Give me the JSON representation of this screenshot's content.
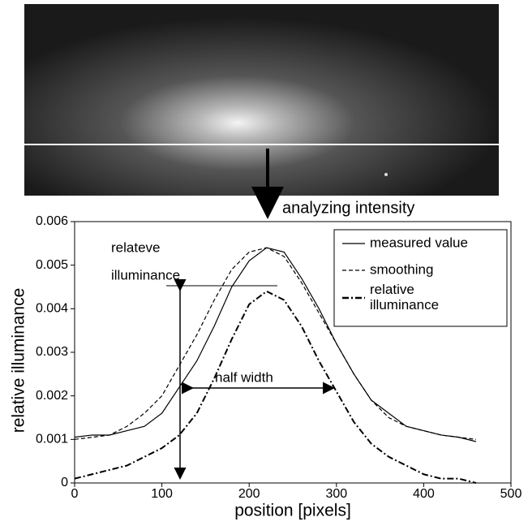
{
  "chart_data": {
    "type": "line",
    "x_label": "position [pixels]",
    "y_label": "relative illuminance",
    "annotations": {
      "top": "analyzing intensity",
      "relative_1": "relateve",
      "relative_2": "illuminance",
      "half_width": "half width"
    },
    "x": [
      0,
      20,
      40,
      60,
      80,
      100,
      120,
      140,
      160,
      180,
      200,
      220,
      240,
      260,
      280,
      300,
      320,
      340,
      360,
      380,
      400,
      420,
      440,
      460
    ],
    "series": [
      {
        "name": "measured value",
        "color": "#000000",
        "style": "solid",
        "values": [
          0.00105,
          0.0011,
          0.0011,
          0.0012,
          0.0013,
          0.0016,
          0.0022,
          0.0028,
          0.0036,
          0.0045,
          0.0051,
          0.0054,
          0.0053,
          0.0047,
          0.004,
          0.0032,
          0.0025,
          0.0019,
          0.0016,
          0.0013,
          0.0012,
          0.0011,
          0.00105,
          0.00095
        ]
      },
      {
        "name": "smoothing",
        "color": "#000000",
        "style": "dashed",
        "values": [
          0.001,
          0.00105,
          0.0011,
          0.0013,
          0.0016,
          0.002,
          0.0027,
          0.0034,
          0.0042,
          0.0049,
          0.0053,
          0.0054,
          0.0052,
          0.0046,
          0.0039,
          0.0032,
          0.0025,
          0.0019,
          0.0015,
          0.0013,
          0.0012,
          0.0011,
          0.00105,
          0.001
        ]
      },
      {
        "name": "relative illuminance",
        "color": "#000000",
        "style": "dash-dot",
        "values": [
          0.0001,
          0.0002,
          0.0003,
          0.0004,
          0.0006,
          0.0008,
          0.0011,
          0.0016,
          0.0024,
          0.0033,
          0.0041,
          0.0044,
          0.0042,
          0.0036,
          0.0028,
          0.0021,
          0.0014,
          0.0009,
          0.0006,
          0.0004,
          0.0002,
          0.0001,
          0.0001,
          0
        ]
      }
    ],
    "xlim": [
      0,
      500
    ],
    "xticks": [
      0,
      100,
      200,
      300,
      400,
      500
    ],
    "ylim": [
      0,
      0.006
    ],
    "yticks": [
      0,
      0.001,
      0.002,
      0.003,
      0.004,
      0.005,
      0.006
    ],
    "grid": false,
    "legend": "top-right"
  }
}
